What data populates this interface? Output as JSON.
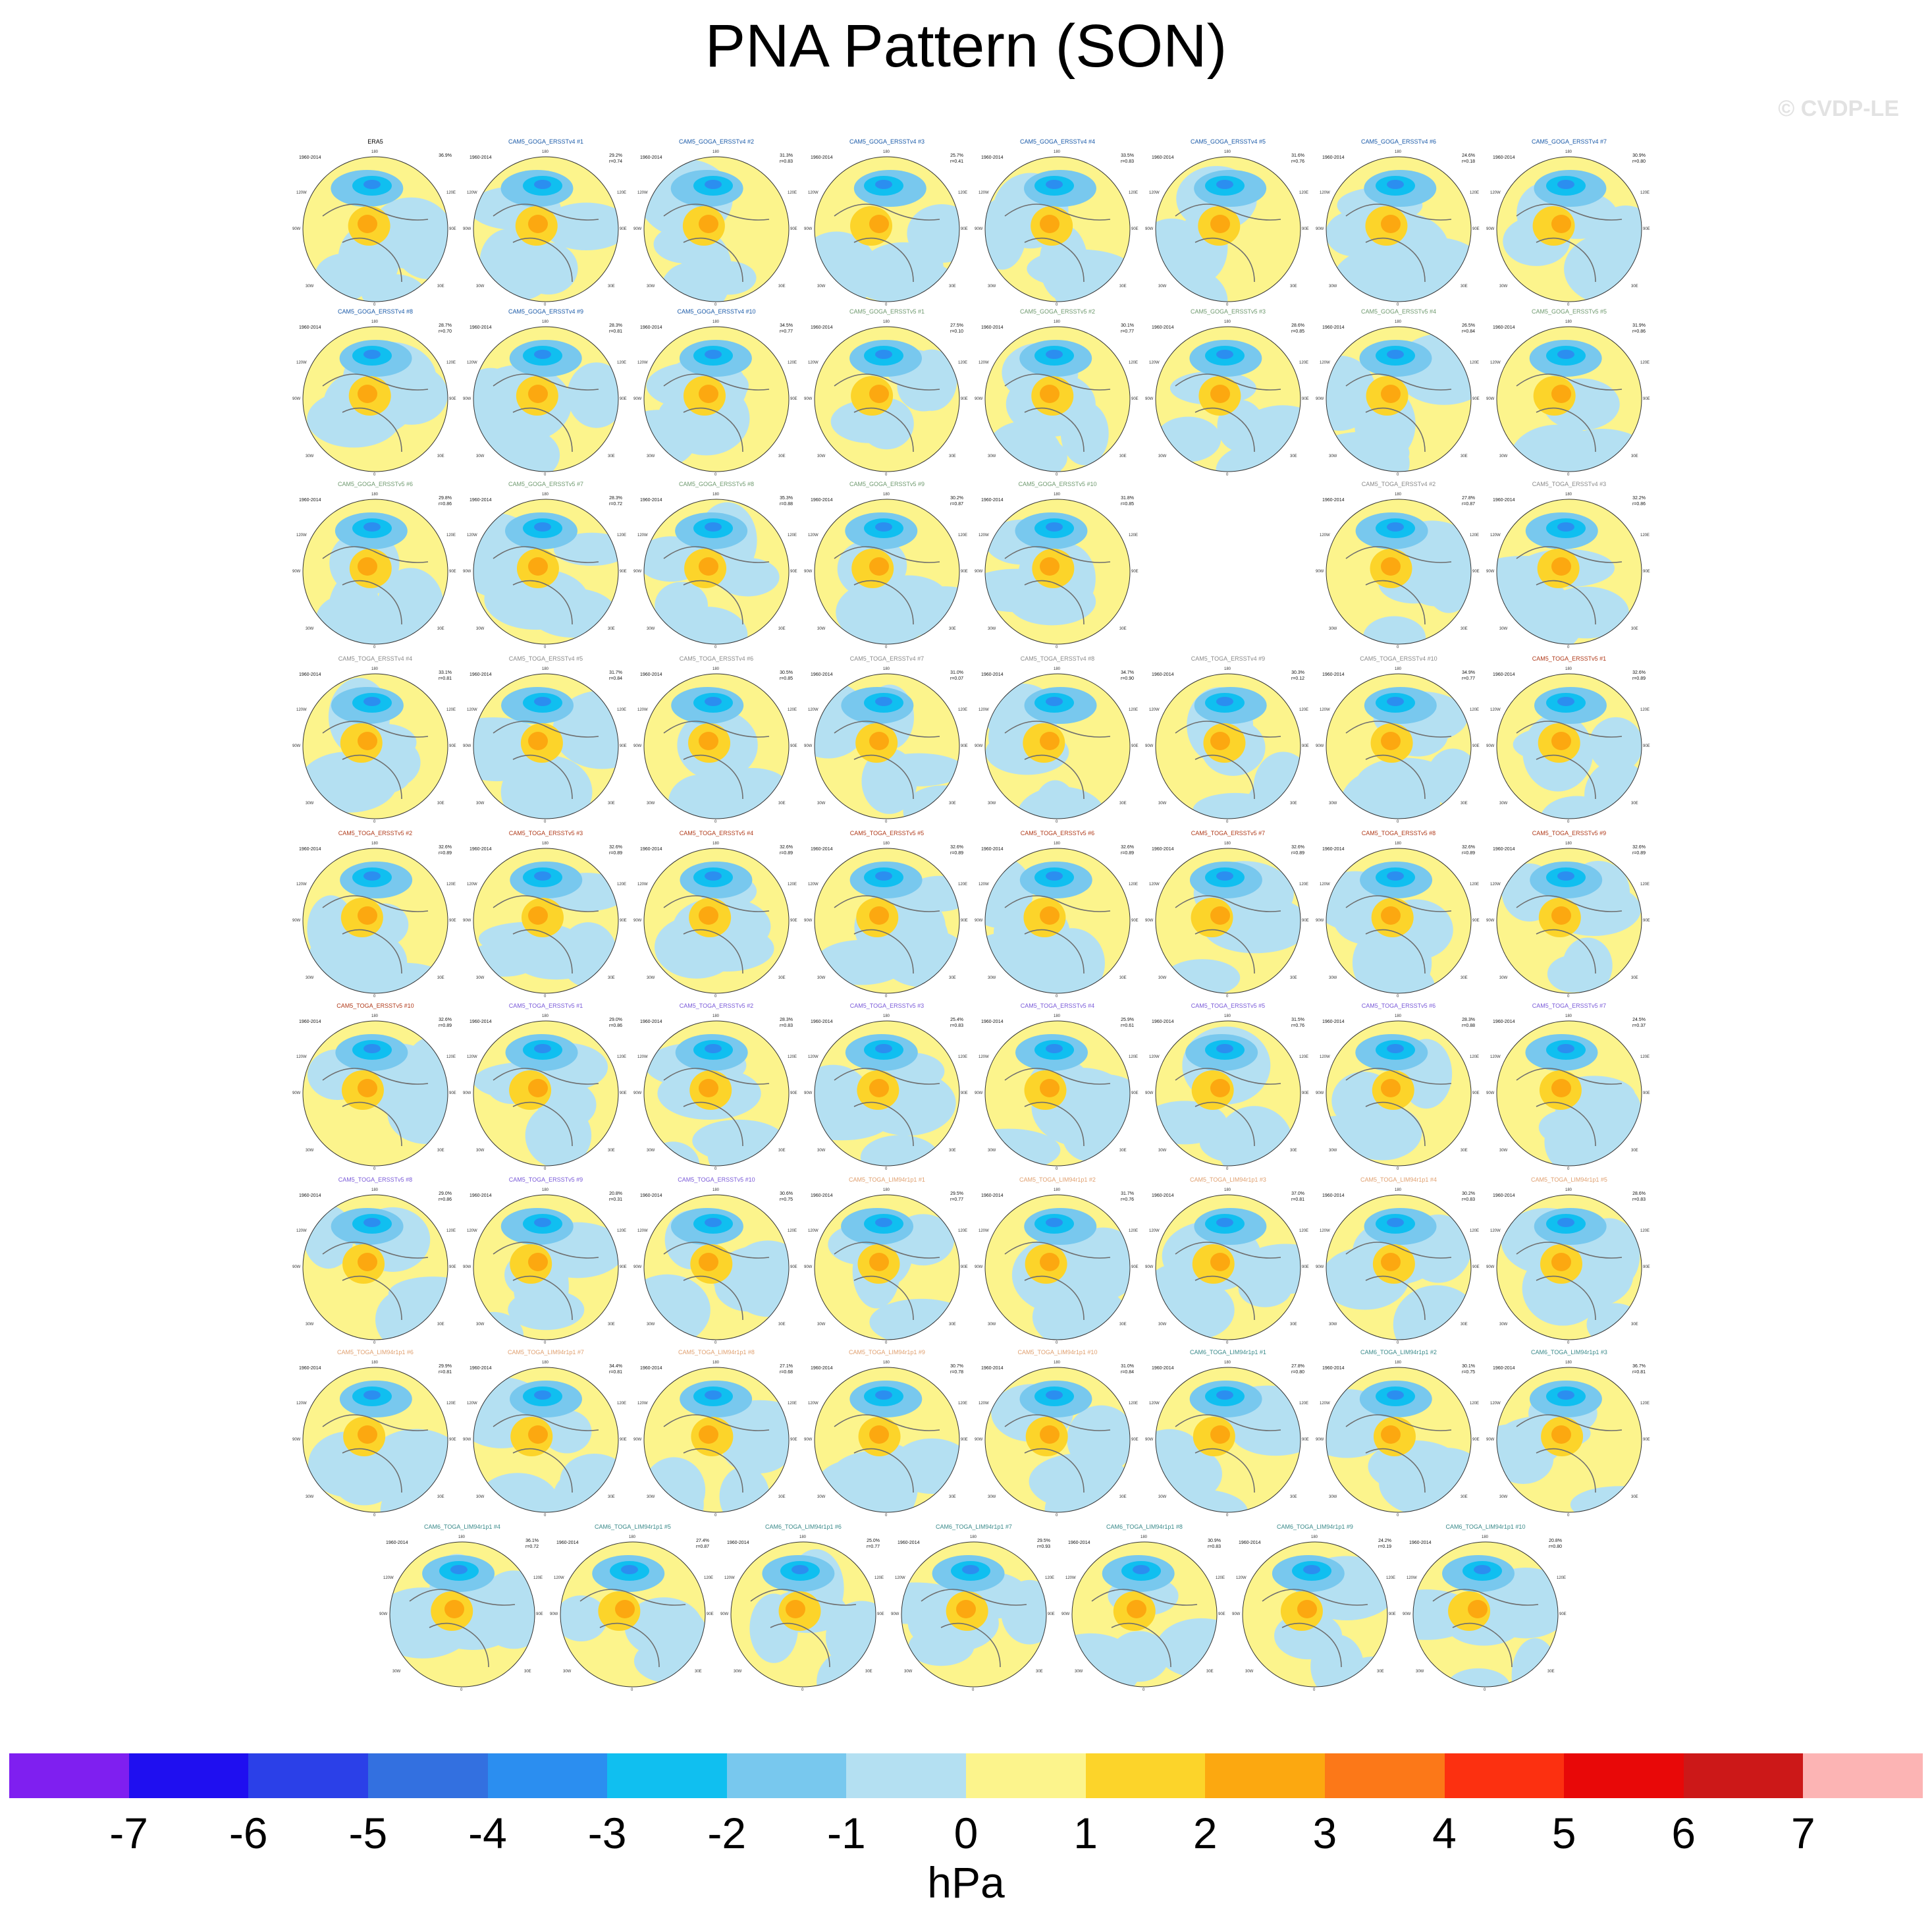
{
  "title": "PNA Pattern (SON)",
  "watermark": "© CVDP-LE",
  "units": "hPa",
  "colorbar": {
    "colors": [
      "#7f1ff0",
      "#1f0ff0",
      "#2b40e8",
      "#3370e0",
      "#2b8ef0",
      "#10bff0",
      "#78c8ee",
      "#b4e0f2",
      "#fcf48c",
      "#fcd42a",
      "#fca810",
      "#fc7818",
      "#fc3010",
      "#e80808",
      "#cc1818",
      "#fcb4b4"
    ],
    "ticks": [
      "-7",
      "-6",
      "-5",
      "-4",
      "-3",
      "-2",
      "-1",
      "0",
      "1",
      "2",
      "3",
      "4",
      "5",
      "6",
      "7"
    ]
  },
  "panel_labels": {
    "years": "1960-2014",
    "top": "180",
    "bottom": "0",
    "left": "90W",
    "right": "90E",
    "ul": "120W",
    "ur": "120E",
    "ll": "30W",
    "lr": "30E"
  },
  "chart_data": {
    "type": "heatmap",
    "title": "PNA Pattern (SON)",
    "units": "hPa",
    "levels": [
      -7,
      -6,
      -5,
      -4,
      -3,
      -2,
      -1,
      0,
      1,
      2,
      3,
      4,
      5,
      6,
      7
    ],
    "panels": [
      {
        "name": "ERA5",
        "pct": "36.9%",
        "r": "",
        "color": "#000000"
      },
      {
        "name": "CAM5_GOGA_ERSSTv4 #1",
        "pct": "29.2%",
        "r": "r=0.74",
        "color": "#1a5aa8"
      },
      {
        "name": "CAM5_GOGA_ERSSTv4 #2",
        "pct": "31.3%",
        "r": "r=0.83",
        "color": "#1a5aa8"
      },
      {
        "name": "CAM5_GOGA_ERSSTv4 #3",
        "pct": "25.7%",
        "r": "r=0.41",
        "color": "#1a5aa8"
      },
      {
        "name": "CAM5_GOGA_ERSSTv4 #4",
        "pct": "33.5%",
        "r": "r=0.83",
        "color": "#1a5aa8"
      },
      {
        "name": "CAM5_GOGA_ERSSTv4 #5",
        "pct": "31.6%",
        "r": "r=0.76",
        "color": "#1a5aa8"
      },
      {
        "name": "CAM5_GOGA_ERSSTv4 #6",
        "pct": "24.6%",
        "r": "r=0.18",
        "color": "#1a5aa8"
      },
      {
        "name": "CAM5_GOGA_ERSSTv4 #7",
        "pct": "30.9%",
        "r": "r=0.80",
        "color": "#1a5aa8"
      },
      {
        "name": "CAM5_GOGA_ERSSTv4 #8",
        "pct": "28.7%",
        "r": "r=0.70",
        "color": "#1a5aa8"
      },
      {
        "name": "CAM5_GOGA_ERSSTv4 #9",
        "pct": "28.3%",
        "r": "r=0.81",
        "color": "#1a5aa8"
      },
      {
        "name": "CAM5_GOGA_ERSSTv4 #10",
        "pct": "34.5%",
        "r": "r=0.77",
        "color": "#1a5aa8"
      },
      {
        "name": "CAM5_GOGA_ERSSTv5 #1",
        "pct": "27.5%",
        "r": "r=0.10",
        "color": "#6f9a6f"
      },
      {
        "name": "CAM5_GOGA_ERSSTv5 #2",
        "pct": "30.1%",
        "r": "r=0.77",
        "color": "#6f9a6f"
      },
      {
        "name": "CAM5_GOGA_ERSSTv5 #3",
        "pct": "28.6%",
        "r": "r=0.85",
        "color": "#6f9a6f"
      },
      {
        "name": "CAM5_GOGA_ERSSTv5 #4",
        "pct": "26.5%",
        "r": "r=0.84",
        "color": "#6f9a6f"
      },
      {
        "name": "CAM5_GOGA_ERSSTv5 #5",
        "pct": "31.9%",
        "r": "r=0.86",
        "color": "#6f9a6f"
      },
      {
        "name": "CAM5_GOGA_ERSSTv5 #6",
        "pct": "29.8%",
        "r": "r=0.86",
        "color": "#6f9a6f"
      },
      {
        "name": "CAM5_GOGA_ERSSTv5 #7",
        "pct": "28.3%",
        "r": "r=0.72",
        "color": "#6f9a6f"
      },
      {
        "name": "CAM5_GOGA_ERSSTv5 #8",
        "pct": "35.3%",
        "r": "r=0.88",
        "color": "#6f9a6f"
      },
      {
        "name": "CAM5_GOGA_ERSSTv5 #9",
        "pct": "30.2%",
        "r": "r=0.87",
        "color": "#6f9a6f"
      },
      {
        "name": "CAM5_GOGA_ERSSTv5 #10",
        "pct": "31.8%",
        "r": "r=0.85",
        "color": "#6f9a6f"
      },
      {
        "name": "CAM5_TOGA_ERSSTv4 #2",
        "pct": "27.8%",
        "r": "r=0.87",
        "color": "#8a8a8a"
      },
      {
        "name": "CAM5_TOGA_ERSSTv4 #3",
        "pct": "32.2%",
        "r": "r=0.86",
        "color": "#8a8a8a"
      },
      {
        "name": "CAM5_TOGA_ERSSTv4 #4",
        "pct": "33.1%",
        "r": "r=0.81",
        "color": "#8a8a8a"
      },
      {
        "name": "CAM5_TOGA_ERSSTv4 #5",
        "pct": "31.7%",
        "r": "r=0.84",
        "color": "#8a8a8a"
      },
      {
        "name": "CAM5_TOGA_ERSSTv4 #6",
        "pct": "30.5%",
        "r": "r=0.85",
        "color": "#8a8a8a"
      },
      {
        "name": "CAM5_TOGA_ERSSTv4 #7",
        "pct": "31.0%",
        "r": "r=0.07",
        "color": "#8a8a8a"
      },
      {
        "name": "CAM5_TOGA_ERSSTv4 #8",
        "pct": "34.7%",
        "r": "r=0.90",
        "color": "#8a8a8a"
      },
      {
        "name": "CAM5_TOGA_ERSSTv4 #9",
        "pct": "30.3%",
        "r": "r=0.12",
        "color": "#8a8a8a"
      },
      {
        "name": "CAM5_TOGA_ERSSTv4 #10",
        "pct": "34.9%",
        "r": "r=0.77",
        "color": "#8a8a8a"
      },
      {
        "name": "CAM5_TOGA_ERSSTv5 #1",
        "pct": "32.6%",
        "r": "r=0.89",
        "color": "#b03a1a"
      },
      {
        "name": "CAM5_TOGA_ERSSTv5 #2",
        "pct": "32.6%",
        "r": "r=0.89",
        "color": "#b03a1a"
      },
      {
        "name": "CAM5_TOGA_ERSSTv5 #3",
        "pct": "32.6%",
        "r": "r=0.89",
        "color": "#b03a1a"
      },
      {
        "name": "CAM5_TOGA_ERSSTv5 #4",
        "pct": "32.6%",
        "r": "r=0.89",
        "color": "#b03a1a"
      },
      {
        "name": "CAM5_TOGA_ERSSTv5 #5",
        "pct": "32.6%",
        "r": "r=0.89",
        "color": "#b03a1a"
      },
      {
        "name": "CAM5_TOGA_ERSSTv5 #6",
        "pct": "32.6%",
        "r": "r=0.89",
        "color": "#b03a1a"
      },
      {
        "name": "CAM5_TOGA_ERSSTv5 #7",
        "pct": "32.6%",
        "r": "r=0.89",
        "color": "#b03a1a"
      },
      {
        "name": "CAM5_TOGA_ERSSTv5 #8",
        "pct": "32.6%",
        "r": "r=0.89",
        "color": "#b03a1a"
      },
      {
        "name": "CAM5_TOGA_ERSSTv5 #9",
        "pct": "32.6%",
        "r": "r=0.89",
        "color": "#b03a1a"
      },
      {
        "name": "CAM5_TOGA_ERSSTv5 #10",
        "pct": "32.6%",
        "r": "r=0.89",
        "color": "#b03a1a"
      },
      {
        "name": "CAM5_TOGA_ERSSTv5 #1",
        "pct": "29.0%",
        "r": "r=0.86",
        "color": "#7a5ad8"
      },
      {
        "name": "CAM5_TOGA_ERSSTv5 #2",
        "pct": "28.3%",
        "r": "r=0.83",
        "color": "#7a5ad8"
      },
      {
        "name": "CAM5_TOGA_ERSSTv5 #3",
        "pct": "25.4%",
        "r": "r=0.83",
        "color": "#7a5ad8"
      },
      {
        "name": "CAM5_TOGA_ERSSTv5 #4",
        "pct": "25.9%",
        "r": "r=0.61",
        "color": "#7a5ad8"
      },
      {
        "name": "CAM5_TOGA_ERSSTv5 #5",
        "pct": "31.5%",
        "r": "r=0.76",
        "color": "#7a5ad8"
      },
      {
        "name": "CAM5_TOGA_ERSSTv5 #6",
        "pct": "28.3%",
        "r": "r=0.88",
        "color": "#7a5ad8"
      },
      {
        "name": "CAM5_TOGA_ERSSTv5 #7",
        "pct": "24.5%",
        "r": "r=0.37",
        "color": "#7a5ad8"
      },
      {
        "name": "CAM5_TOGA_ERSSTv5 #8",
        "pct": "29.0%",
        "r": "r=0.86",
        "color": "#7a5ad8"
      },
      {
        "name": "CAM5_TOGA_ERSSTv5 #9",
        "pct": "20.8%",
        "r": "r=0.31",
        "color": "#7a5ad8"
      },
      {
        "name": "CAM5_TOGA_ERSSTv5 #10",
        "pct": "30.6%",
        "r": "r=0.75",
        "color": "#7a5ad8"
      },
      {
        "name": "CAM5_TOGA_LIM94r1p1 #1",
        "pct": "29.5%",
        "r": "r=0.77",
        "color": "#e0a070"
      },
      {
        "name": "CAM5_TOGA_LIM94r1p1 #2",
        "pct": "31.7%",
        "r": "r=0.76",
        "color": "#e0a070"
      },
      {
        "name": "CAM5_TOGA_LIM94r1p1 #3",
        "pct": "37.0%",
        "r": "r=0.81",
        "color": "#e0a070"
      },
      {
        "name": "CAM5_TOGA_LIM94r1p1 #4",
        "pct": "30.2%",
        "r": "r=0.83",
        "color": "#e0a070"
      },
      {
        "name": "CAM5_TOGA_LIM94r1p1 #5",
        "pct": "28.6%",
        "r": "r=0.83",
        "color": "#e0a070"
      },
      {
        "name": "CAM5_TOGA_LIM94r1p1 #6",
        "pct": "29.9%",
        "r": "r=0.81",
        "color": "#e0a070"
      },
      {
        "name": "CAM5_TOGA_LIM94r1p1 #7",
        "pct": "34.4%",
        "r": "r=0.81",
        "color": "#e0a070"
      },
      {
        "name": "CAM5_TOGA_LIM94r1p1 #8",
        "pct": "27.1%",
        "r": "r=0.68",
        "color": "#e0a070"
      },
      {
        "name": "CAM5_TOGA_LIM94r1p1 #9",
        "pct": "30.7%",
        "r": "r=0.78",
        "color": "#e0a070"
      },
      {
        "name": "CAM5_TOGA_LIM94r1p1 #10",
        "pct": "31.0%",
        "r": "r=0.84",
        "color": "#e0a070"
      },
      {
        "name": "CAM6_TOGA_LIM94r1p1 #1",
        "pct": "27.8%",
        "r": "r=0.80",
        "color": "#3a8a8a"
      },
      {
        "name": "CAM6_TOGA_LIM94r1p1 #2",
        "pct": "30.1%",
        "r": "r=0.75",
        "color": "#3a8a8a"
      },
      {
        "name": "CAM6_TOGA_LIM94r1p1 #3",
        "pct": "36.7%",
        "r": "r=0.81",
        "color": "#3a8a8a"
      },
      {
        "name": "CAM6_TOGA_LIM94r1p1 #4",
        "pct": "36.1%",
        "r": "r=0.72",
        "color": "#3a8a8a"
      },
      {
        "name": "CAM6_TOGA_LIM94r1p1 #5",
        "pct": "27.4%",
        "r": "r=0.87",
        "color": "#3a8a8a"
      },
      {
        "name": "CAM6_TOGA_LIM94r1p1 #6",
        "pct": "25.0%",
        "r": "r=0.77",
        "color": "#3a8a8a"
      },
      {
        "name": "CAM6_TOGA_LIM94r1p1 #7",
        "pct": "29.5%",
        "r": "r=0.93",
        "color": "#3a8a8a"
      },
      {
        "name": "CAM6_TOGA_LIM94r1p1 #8",
        "pct": "30.9%",
        "r": "r=0.83",
        "color": "#3a8a8a"
      },
      {
        "name": "CAM6_TOGA_LIM94r1p1 #9",
        "pct": "24.2%",
        "r": "r=0.19",
        "color": "#3a8a8a"
      },
      {
        "name": "CAM6_TOGA_LIM94r1p1 #10",
        "pct": "20.8%",
        "r": "r=0.80",
        "color": "#3a8a8a"
      }
    ]
  }
}
